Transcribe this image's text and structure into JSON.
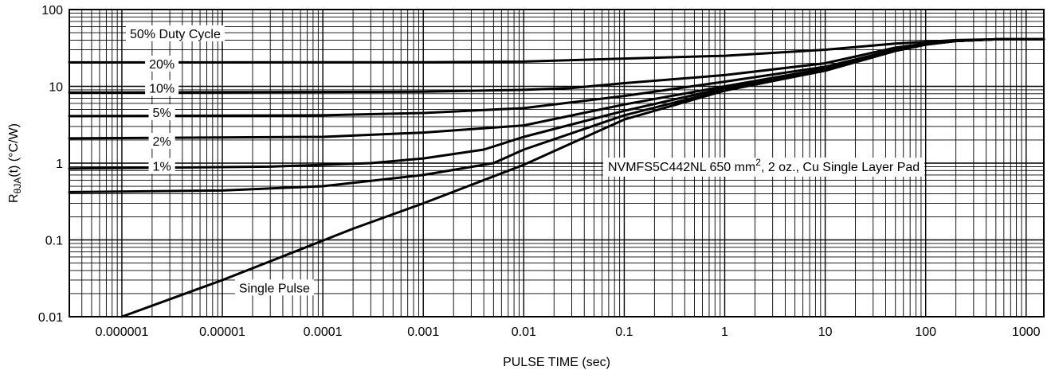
{
  "chart_data": {
    "type": "line",
    "xscale": "log",
    "yscale": "log",
    "xlabel": "PULSE TIME (sec)",
    "ylabel": {
      "main": "R",
      "sub": "θJA",
      "rest": "(t) (°C/W)"
    },
    "xlim": [
      3e-07,
      1500
    ],
    "ylim": [
      0.01,
      100
    ],
    "x_ticks": [
      {
        "value": 1e-06,
        "label": "0.000001"
      },
      {
        "value": 1e-05,
        "label": "0.00001"
      },
      {
        "value": 0.0001,
        "label": "0.0001"
      },
      {
        "value": 0.001,
        "label": "0.001"
      },
      {
        "value": 0.01,
        "label": "0.01"
      },
      {
        "value": 0.1,
        "label": "0.1"
      },
      {
        "value": 1,
        "label": "1"
      },
      {
        "value": 10,
        "label": "10"
      },
      {
        "value": 100,
        "label": "100"
      },
      {
        "value": 1000,
        "label": "1000"
      }
    ],
    "y_ticks": [
      {
        "value": 0.01,
        "label": "0.01"
      },
      {
        "value": 0.1,
        "label": "0.1"
      },
      {
        "value": 1,
        "label": "1"
      },
      {
        "value": 10,
        "label": "10"
      },
      {
        "value": 100,
        "label": "100"
      }
    ],
    "annotation": {
      "text_before": "NVMFS5C442NL 650 mm",
      "superscript": "2",
      "text_after": ", 2 oz., Cu Single Layer Pad"
    },
    "grid": true,
    "series": [
      {
        "name": "50% Duty Cycle",
        "points": [
          [
            3e-07,
            20.5
          ],
          [
            0.001,
            20.6
          ],
          [
            0.01,
            21.0
          ],
          [
            0.1,
            23
          ],
          [
            1,
            25
          ],
          [
            10,
            30
          ],
          [
            50,
            36
          ],
          [
            100,
            38
          ],
          [
            200,
            40
          ],
          [
            500,
            41
          ],
          [
            1500,
            41
          ]
        ]
      },
      {
        "name": "20%",
        "points": [
          [
            3e-07,
            8.3
          ],
          [
            0.001,
            8.5
          ],
          [
            0.01,
            9.0
          ],
          [
            0.03,
            9.5
          ],
          [
            0.1,
            11
          ],
          [
            1,
            14
          ],
          [
            10,
            20
          ],
          [
            50,
            32
          ],
          [
            100,
            36
          ],
          [
            200,
            39
          ],
          [
            500,
            41
          ],
          [
            1500,
            41
          ]
        ]
      },
      {
        "name": "10%",
        "points": [
          [
            3e-07,
            4.1
          ],
          [
            0.0001,
            4.2
          ],
          [
            0.001,
            4.5
          ],
          [
            0.01,
            5.2
          ],
          [
            0.1,
            7.5
          ],
          [
            1,
            11.5
          ],
          [
            10,
            18
          ],
          [
            50,
            30
          ],
          [
            100,
            35
          ],
          [
            200,
            39
          ],
          [
            500,
            41
          ],
          [
            1500,
            41
          ]
        ]
      },
      {
        "name": "5%",
        "points": [
          [
            3e-07,
            2.1
          ],
          [
            0.0001,
            2.2
          ],
          [
            0.001,
            2.5
          ],
          [
            0.01,
            3.1
          ],
          [
            0.1,
            5.8
          ],
          [
            1,
            10
          ],
          [
            10,
            17
          ],
          [
            50,
            29
          ],
          [
            100,
            35
          ],
          [
            200,
            39
          ],
          [
            500,
            41
          ],
          [
            1500,
            41
          ]
        ]
      },
      {
        "name": "2%",
        "points": [
          [
            3e-07,
            0.85
          ],
          [
            3e-05,
            0.9
          ],
          [
            0.0003,
            1.0
          ],
          [
            0.001,
            1.15
          ],
          [
            0.004,
            1.5
          ],
          [
            0.01,
            2.2
          ],
          [
            0.1,
            4.8
          ],
          [
            1,
            9.5
          ],
          [
            10,
            16
          ],
          [
            50,
            29
          ],
          [
            100,
            35
          ],
          [
            200,
            39
          ],
          [
            500,
            41
          ],
          [
            1500,
            41
          ]
        ]
      },
      {
        "name": "1%",
        "points": [
          [
            3e-07,
            0.42
          ],
          [
            1e-05,
            0.44
          ],
          [
            0.0001,
            0.5
          ],
          [
            0.001,
            0.7
          ],
          [
            0.005,
            1.0
          ],
          [
            0.01,
            1.5
          ],
          [
            0.1,
            4.2
          ],
          [
            1,
            9
          ],
          [
            10,
            16
          ],
          [
            50,
            29
          ],
          [
            100,
            35
          ],
          [
            200,
            39
          ],
          [
            500,
            41
          ],
          [
            1500,
            41
          ]
        ]
      },
      {
        "name": "Single Pulse",
        "points": [
          [
            1e-06,
            0.01
          ],
          [
            1e-05,
            0.03
          ],
          [
            0.0002,
            0.14
          ],
          [
            0.001,
            0.3
          ],
          [
            0.01,
            0.95
          ],
          [
            0.1,
            3.7
          ],
          [
            1,
            8.8
          ],
          [
            10,
            16
          ],
          [
            50,
            29
          ],
          [
            100,
            35
          ],
          [
            200,
            39
          ],
          [
            500,
            41
          ],
          [
            1500,
            41
          ]
        ]
      }
    ],
    "curve_labels": [
      {
        "text": "50% Duty Cycle",
        "at": [
          3.4e-06,
          49
        ]
      },
      {
        "text": "20%",
        "at": [
          2.5e-06,
          19.8
        ]
      },
      {
        "text": "10%",
        "at": [
          2.5e-06,
          9.5
        ]
      },
      {
        "text": "5%",
        "at": [
          2.5e-06,
          4.6
        ]
      },
      {
        "text": "2%",
        "at": [
          2.5e-06,
          1.95
        ]
      },
      {
        "text": "1%",
        "at": [
          2.5e-06,
          0.92
        ]
      },
      {
        "text": "Single Pulse",
        "at": [
          3.3e-05,
          0.024
        ]
      }
    ]
  }
}
